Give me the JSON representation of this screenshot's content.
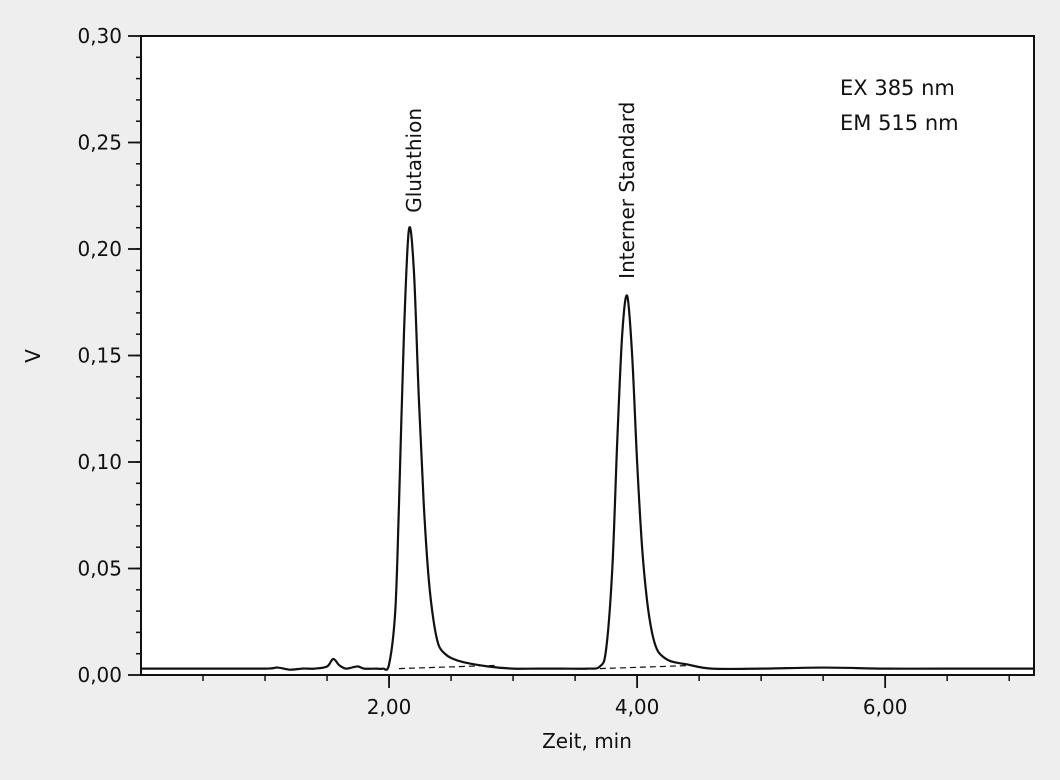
{
  "chart_data": {
    "type": "line",
    "xlabel": "Zeit, min",
    "ylabel": "V",
    "xlim": [
      0,
      7.2
    ],
    "ylim": [
      0,
      0.3
    ],
    "grid": false,
    "x_ticks": [
      {
        "value": 2.0,
        "label": "2,00"
      },
      {
        "value": 4.0,
        "label": "4,00"
      },
      {
        "value": 6.0,
        "label": "6,00"
      }
    ],
    "x_minor_tick_step": 0.5,
    "y_ticks": [
      {
        "value": 0.0,
        "label": "0,00"
      },
      {
        "value": 0.05,
        "label": "0,05"
      },
      {
        "value": 0.1,
        "label": "0,10"
      },
      {
        "value": 0.15,
        "label": "0,15"
      },
      {
        "value": 0.2,
        "label": "0,20"
      },
      {
        "value": 0.25,
        "label": "0,25"
      },
      {
        "value": 0.3,
        "label": "0,30"
      }
    ],
    "y_minor_tick_step": 0.01,
    "series": [
      {
        "x": [
          0.0,
          0.5,
          1.0,
          1.1,
          1.2,
          1.3,
          1.4,
          1.5,
          1.55,
          1.6,
          1.65,
          1.7,
          1.75,
          1.8,
          1.9,
          1.95,
          2.0,
          2.05,
          2.08,
          2.12,
          2.16,
          2.2,
          2.24,
          2.28,
          2.32,
          2.36,
          2.4,
          2.45,
          2.5,
          2.6,
          2.8,
          3.0,
          3.2,
          3.4,
          3.6,
          3.7,
          3.75,
          3.8,
          3.84,
          3.88,
          3.92,
          3.96,
          4.0,
          4.04,
          4.08,
          4.12,
          4.16,
          4.2,
          4.25,
          4.3,
          4.4,
          4.6,
          5.0,
          5.5,
          6.0,
          6.5,
          7.2
        ],
        "y": [
          0.003,
          0.003,
          0.003,
          0.0035,
          0.0025,
          0.003,
          0.003,
          0.004,
          0.0075,
          0.0045,
          0.003,
          0.0035,
          0.004,
          0.003,
          0.003,
          0.003,
          0.005,
          0.03,
          0.08,
          0.16,
          0.209,
          0.19,
          0.13,
          0.08,
          0.045,
          0.025,
          0.014,
          0.01,
          0.008,
          0.006,
          0.004,
          0.003,
          0.003,
          0.003,
          0.003,
          0.004,
          0.012,
          0.05,
          0.11,
          0.16,
          0.178,
          0.15,
          0.1,
          0.06,
          0.035,
          0.02,
          0.012,
          0.009,
          0.007,
          0.006,
          0.005,
          0.003,
          0.003,
          0.0035,
          0.003,
          0.003,
          0.003
        ]
      }
    ],
    "baselines": [
      {
        "x": [
          2.08,
          2.85
        ],
        "y": [
          0.003,
          0.0045
        ]
      },
      {
        "x": [
          3.7,
          4.45
        ],
        "y": [
          0.003,
          0.0045
        ]
      }
    ],
    "annotations": [
      {
        "text": "Glutathion",
        "x": 2.2,
        "y": 0.217
      },
      {
        "text": "Interner Standard",
        "x": 3.92,
        "y": 0.186
      }
    ],
    "detector_settings": [
      "EX 385 nm",
      "EM 515 nm"
    ]
  }
}
